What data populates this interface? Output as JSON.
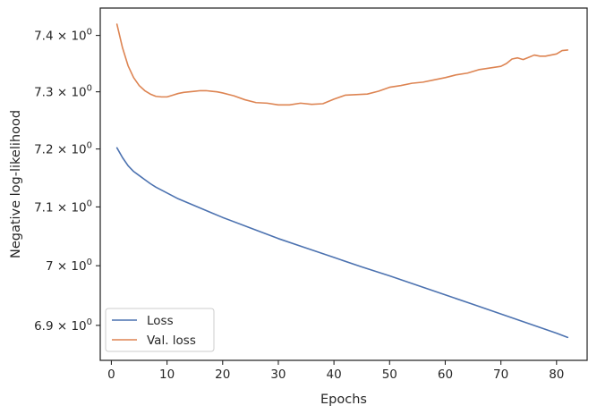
{
  "chart_data": {
    "type": "line",
    "title": "",
    "xlabel": "Epochs",
    "ylabel": "Negative log-likelihood",
    "xlim": [
      -2,
      85.5
    ],
    "ylim": [
      6.842,
      7.449
    ],
    "yscale": "log",
    "grid": false,
    "legend_position": "lower-left",
    "x_ticks": [
      0,
      10,
      20,
      30,
      40,
      50,
      60,
      70,
      80
    ],
    "x_tick_labels": [
      "0",
      "10",
      "20",
      "30",
      "40",
      "50",
      "60",
      "70",
      "80"
    ],
    "y_ticks": [
      6.9,
      7.0,
      7.1,
      7.2,
      7.3,
      7.4
    ],
    "y_tick_labels": [
      {
        "base": "6.9",
        "exp": "0"
      },
      {
        "base": "7",
        "exp": "0"
      },
      {
        "base": "7.1",
        "exp": "0"
      },
      {
        "base": "7.2",
        "exp": "0"
      },
      {
        "base": "7.3",
        "exp": "0"
      },
      {
        "base": "7.4",
        "exp": "0"
      }
    ],
    "series": [
      {
        "name": "Loss",
        "color": "#4c72b0",
        "x": [
          1,
          2,
          3,
          4,
          5,
          6,
          7,
          8,
          9,
          10,
          12,
          14,
          16,
          18,
          20,
          25,
          30,
          35,
          40,
          45,
          50,
          55,
          60,
          65,
          70,
          75,
          80,
          82
        ],
        "y": [
          7.202,
          7.185,
          7.171,
          7.161,
          7.154,
          7.147,
          7.14,
          7.134,
          7.129,
          7.124,
          7.114,
          7.106,
          7.098,
          7.09,
          7.082,
          7.064,
          7.046,
          7.03,
          7.014,
          6.998,
          6.983,
          6.967,
          6.951,
          6.935,
          6.919,
          6.903,
          6.887,
          6.88
        ]
      },
      {
        "name": "Val. loss",
        "color": "#dd8452",
        "x": [
          1,
          2,
          3,
          4,
          5,
          6,
          7,
          8,
          9,
          10,
          11,
          12,
          13,
          14,
          15,
          16,
          17,
          18,
          19,
          20,
          22,
          24,
          26,
          28,
          30,
          32,
          34,
          36,
          38,
          40,
          42,
          44,
          46,
          48,
          50,
          52,
          54,
          56,
          58,
          60,
          62,
          64,
          66,
          68,
          70,
          71,
          72,
          73,
          74,
          75,
          76,
          77,
          78,
          79,
          80,
          81,
          82
        ],
        "y": [
          7.42,
          7.378,
          7.346,
          7.325,
          7.311,
          7.302,
          7.296,
          7.292,
          7.291,
          7.291,
          7.294,
          7.297,
          7.299,
          7.3,
          7.301,
          7.302,
          7.302,
          7.301,
          7.3,
          7.298,
          7.293,
          7.286,
          7.281,
          7.28,
          7.277,
          7.277,
          7.28,
          7.278,
          7.279,
          7.287,
          7.294,
          7.295,
          7.296,
          7.301,
          7.308,
          7.311,
          7.315,
          7.317,
          7.321,
          7.325,
          7.33,
          7.333,
          7.339,
          7.342,
          7.345,
          7.35,
          7.358,
          7.36,
          7.357,
          7.361,
          7.365,
          7.363,
          7.363,
          7.365,
          7.367,
          7.373,
          7.374
        ]
      }
    ]
  }
}
